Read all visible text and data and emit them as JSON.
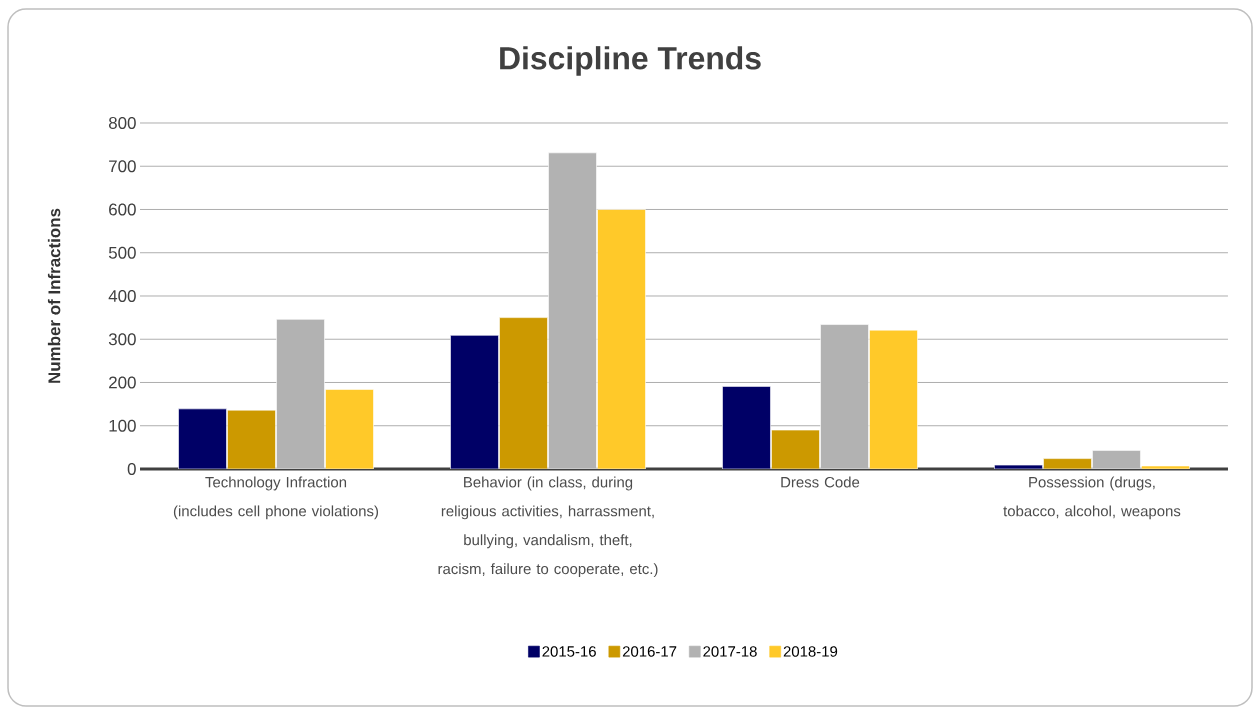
{
  "chart_data": {
    "type": "bar",
    "title": "Discipline Trends",
    "ylabel": "Number of Infractions",
    "categories": [
      "Technology Infraction (includes cell phone violations)",
      "Behavior (in class, during religious activities, harrassment, bullying, vandalism, theft, racism, failure to cooperate, etc.)",
      "Dress Code",
      "Possession (drugs, tobacco, alcohol, weapons"
    ],
    "series": [
      {
        "name": "2015-16",
        "color": "#000066",
        "values": [
          139,
          309,
          191,
          9
        ]
      },
      {
        "name": "2016-17",
        "color": "#cc9900",
        "values": [
          136,
          350,
          90,
          24
        ]
      },
      {
        "name": "2017-18",
        "color": "#b2b2b2",
        "values": [
          346,
          731,
          334,
          43
        ]
      },
      {
        "name": "2018-19",
        "color": "#ffc929",
        "values": [
          184,
          600,
          321,
          7
        ]
      }
    ],
    "ylim": [
      0,
      800
    ],
    "yticks": [
      0,
      100,
      200,
      300,
      400,
      500,
      600,
      700,
      800
    ],
    "grid": "y",
    "legend": "bottom"
  }
}
